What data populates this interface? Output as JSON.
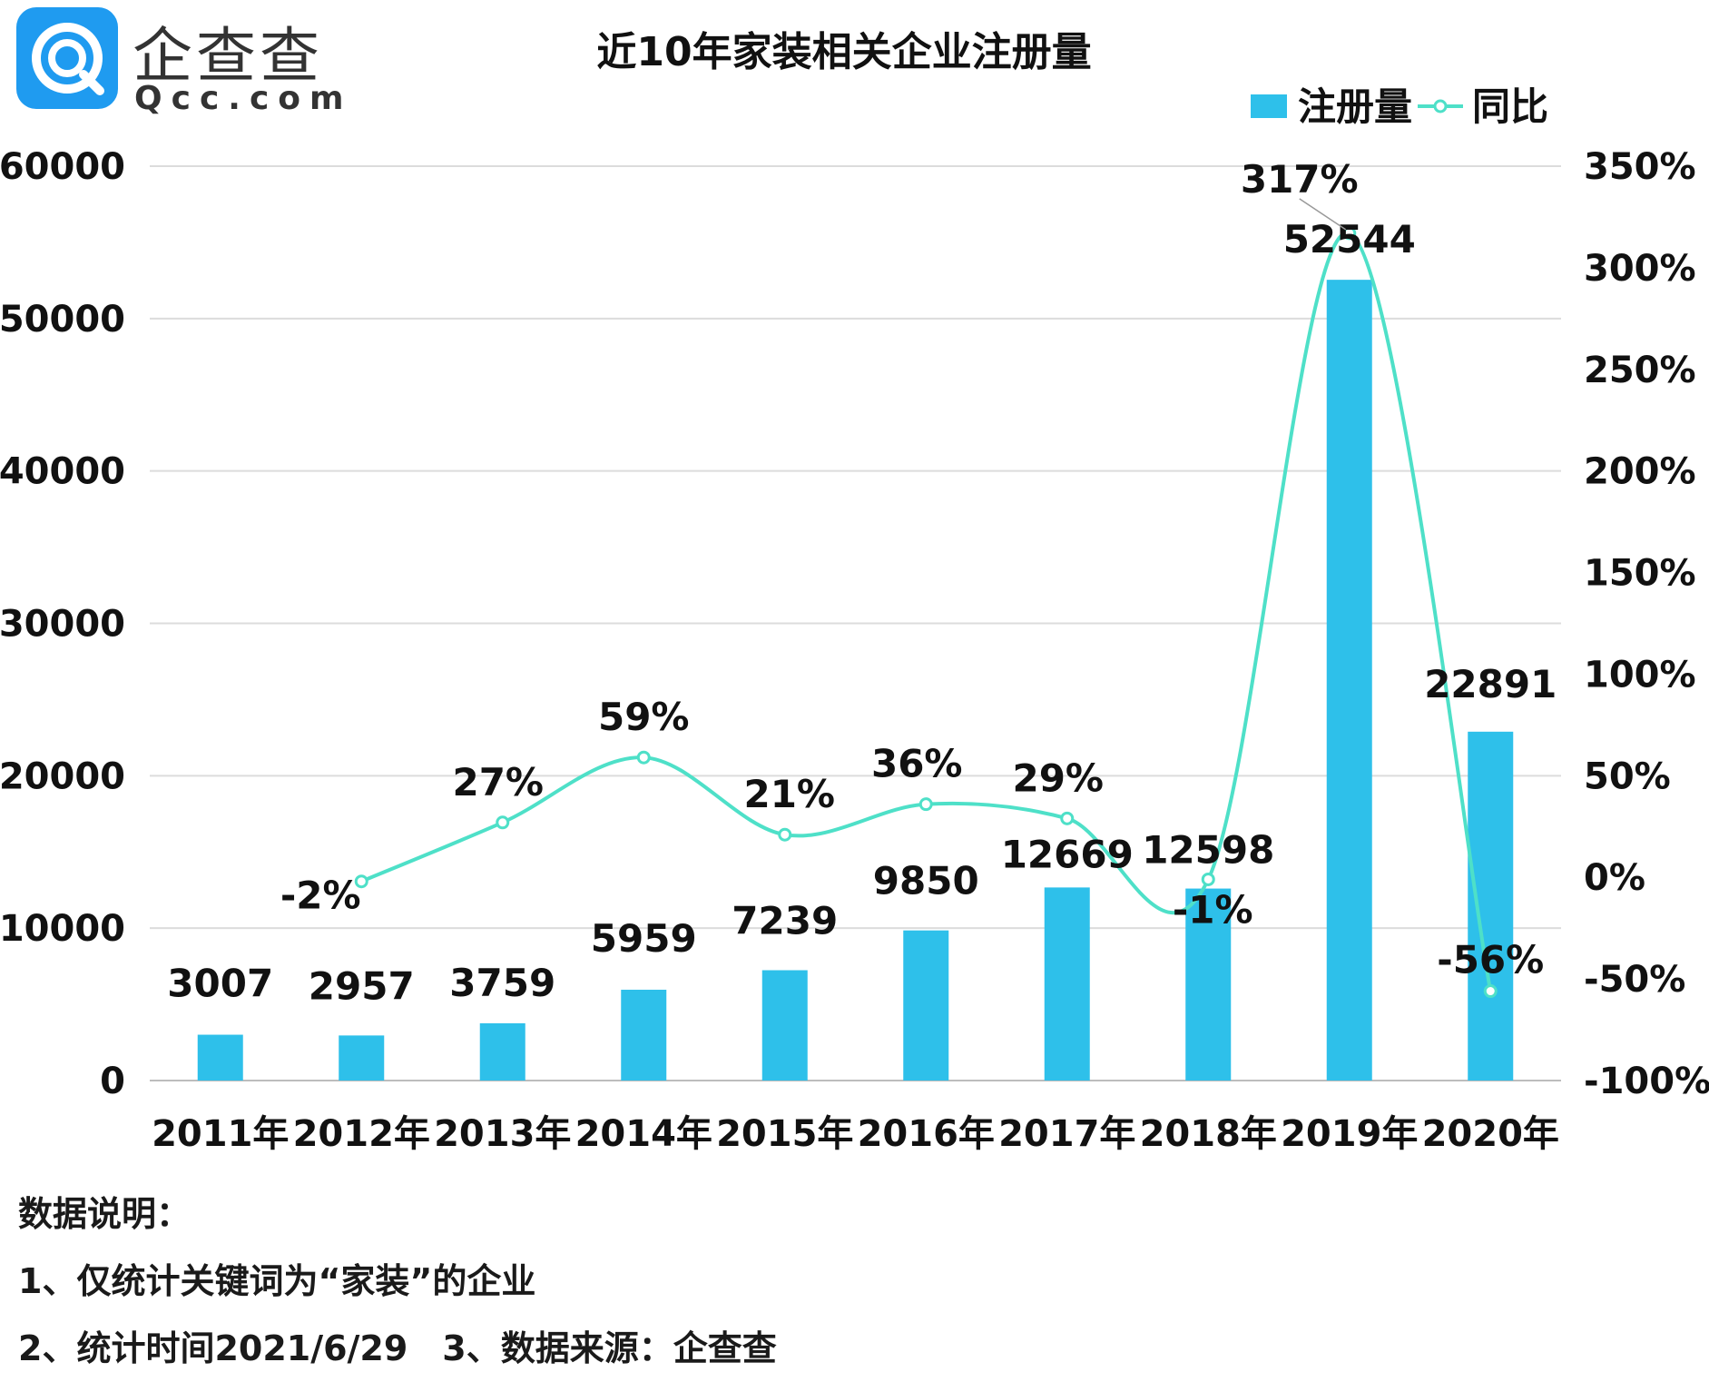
{
  "logo": {
    "cn": "企查查",
    "en": "Qcc.com"
  },
  "chart_data": {
    "type": "bar+line",
    "title": "近10年家装相关企业注册量",
    "categories": [
      "2011年",
      "2012年",
      "2013年",
      "2014年",
      "2015年",
      "2016年",
      "2017年",
      "2018年",
      "2019年",
      "2020年"
    ],
    "series": [
      {
        "name": "注册量",
        "type": "bar",
        "axis": "left",
        "color": "#2ec0ea",
        "values": [
          3007,
          2957,
          3759,
          5959,
          7239,
          9850,
          12669,
          12598,
          52544,
          22891
        ],
        "labels": [
          "3007",
          "2957",
          "3759",
          "5959",
          "7239",
          "9850",
          "12669",
          "12598",
          "52544",
          "22891"
        ]
      },
      {
        "name": "同比",
        "type": "line",
        "axis": "right",
        "color": "#4ee0c8",
        "smooth": true,
        "values": [
          null,
          -2,
          27,
          59,
          21,
          36,
          29,
          -1,
          317,
          -56
        ],
        "labels": [
          "",
          "-2%",
          "27%",
          "59%",
          "21%",
          "36%",
          "29%",
          "-1%",
          "317%",
          "-56%"
        ]
      }
    ],
    "y_left": {
      "min": 0,
      "max": 60000,
      "ticks": [
        "0",
        "10000",
        "20000",
        "30000",
        "40000",
        "50000",
        "60000"
      ]
    },
    "y_right": {
      "min": -100,
      "max": 350,
      "ticks": [
        "-100%",
        "-50%",
        "0%",
        "50%",
        "100%",
        "150%",
        "200%",
        "250%",
        "300%",
        "350%"
      ]
    },
    "grid": true,
    "legend": "top-right"
  },
  "notes": {
    "heading": "数据说明：",
    "line1": "1、仅统计关键词为“家装”的企业",
    "line2": "2、统计时间2021/6/29　3、数据来源：企查查"
  }
}
